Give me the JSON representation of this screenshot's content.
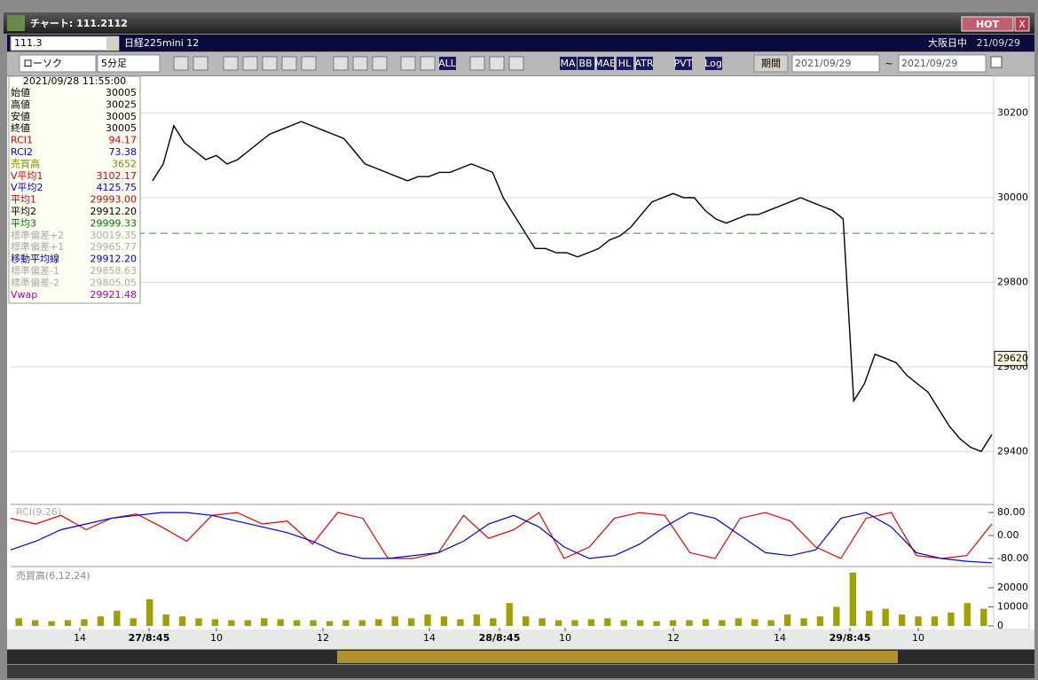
{
  "window": {
    "title": "チャート: 111.2112",
    "hot_button": "HOT",
    "close_button": "X"
  },
  "header": {
    "code": "111.3",
    "instrument": "日経225mini 12",
    "market": "大阪日中",
    "date": "21/09/29"
  },
  "toolbar": {
    "chart_type": "ローソク",
    "interval": "5分足",
    "icon_labels": [
      "ALL",
      "MA",
      "BB",
      "MAE",
      "HL",
      "ATR",
      "PVT",
      "Log"
    ],
    "period_button": "期間",
    "date_from": "2021/09/29",
    "range_sep": "~",
    "date_to": "2021/09/29"
  },
  "info_panel": {
    "datetime": "2021/09/28 11:55:00",
    "rows": [
      {
        "label": "始値",
        "value": "30005",
        "color": "#000000"
      },
      {
        "label": "高値",
        "value": "30025",
        "color": "#000000"
      },
      {
        "label": "安値",
        "value": "30005",
        "color": "#000000"
      },
      {
        "label": "終値",
        "value": "30005",
        "color": "#000000"
      },
      {
        "label": "RCI1",
        "value": "94.17",
        "color": "#cc0000"
      },
      {
        "label": "RCI2",
        "value": "73.38",
        "color": "#0000cc"
      },
      {
        "label": "売買高",
        "value": "3652",
        "color": "#888800"
      },
      {
        "label": "V平均1",
        "value": "3102.17",
        "color": "#cc0000"
      },
      {
        "label": "V平均2",
        "value": "4125.75",
        "color": "#0000cc"
      },
      {
        "label": "平均1",
        "value": "29993.00",
        "color": "#cc0000"
      },
      {
        "label": "平均2",
        "value": "29912.20",
        "color": "#000000"
      },
      {
        "label": "平均3",
        "value": "29999.33",
        "color": "#007700"
      },
      {
        "label": "標準偏差+2",
        "value": "30019.35",
        "color": "#aaaaaa"
      },
      {
        "label": "標準偏差+1",
        "value": "29965.77",
        "color": "#aaaaaa"
      },
      {
        "label": "移動平均線",
        "value": "29912.20",
        "color": "#0000aa"
      },
      {
        "label": "標準偏差-1",
        "value": "29858.63",
        "color": "#aaaaaa"
      },
      {
        "label": "標準偏差-2",
        "value": "29805.05",
        "color": "#aaaaaa"
      },
      {
        "label": "Vwap",
        "value": "29921.48",
        "color": "#aa00aa"
      }
    ]
  },
  "price_panel": {
    "closes": [
      30040,
      30080,
      30170,
      30130,
      30110,
      30090,
      30100,
      30080,
      30090,
      30110,
      30130,
      30150,
      30160,
      30170,
      30180,
      30170,
      30160,
      30150,
      30140,
      30110,
      30080,
      30070,
      30060,
      30050,
      30040,
      30050,
      30050,
      30060,
      30060,
      30070,
      30080,
      30070,
      30060,
      30000,
      29960,
      29920,
      29880,
      29880,
      29870,
      29870,
      29860,
      29870,
      29880,
      29900,
      29910,
      29930,
      29960,
      29990,
      30000,
      30010,
      30000,
      30000,
      29970,
      29950,
      29940,
      29950,
      29960,
      29960,
      29970,
      29980,
      29990,
      30000,
      29990,
      29980,
      29970,
      29950,
      29520,
      29560,
      29630,
      29620,
      29610,
      29580,
      29560,
      29540,
      29500,
      29460,
      29430,
      29410,
      29400,
      29440
    ],
    "color": "#000000",
    "ylim": [
      29277,
      30283
    ],
    "yticks": [
      30200,
      30000,
      29800,
      29600,
      29400
    ],
    "reference_line": 29916,
    "current_price": 29620
  },
  "rci_panel": {
    "label": "RCI(9,26)",
    "series": [
      {
        "name": "RCI1",
        "color": "#dd0000",
        "values": [
          60,
          40,
          70,
          20,
          60,
          75,
          30,
          -20,
          70,
          80,
          40,
          50,
          -30,
          80,
          60,
          -80,
          -80,
          -60,
          70,
          -10,
          20,
          80,
          -80,
          -40,
          60,
          80,
          70,
          -60,
          -80,
          60,
          80,
          50,
          -40,
          -80,
          60,
          80,
          -70,
          -80,
          -70,
          40
        ]
      },
      {
        "name": "RCI2",
        "color": "#0000cc",
        "values": [
          -50,
          -20,
          20,
          40,
          60,
          70,
          80,
          80,
          70,
          50,
          30,
          10,
          -20,
          -60,
          -80,
          -80,
          -70,
          -60,
          -20,
          40,
          70,
          30,
          -40,
          -80,
          -70,
          -30,
          30,
          80,
          60,
          0,
          -60,
          -70,
          -50,
          60,
          80,
          30,
          -60,
          -80,
          -90,
          -95
        ]
      }
    ],
    "ylim": [
      -105,
      105
    ],
    "yticks": [
      {
        "value": 80,
        "label": "80.00"
      },
      {
        "value": 0,
        "label": "0.00"
      },
      {
        "value": -80,
        "label": "-80.00"
      }
    ]
  },
  "volume_panel": {
    "label": "売買高(6,12,24)",
    "values": [
      4000,
      3000,
      2500,
      3000,
      3500,
      5000,
      8000,
      4000,
      14000,
      6000,
      5000,
      4000,
      3500,
      3000,
      3000,
      4000,
      3500,
      3000,
      3000,
      2500,
      3000,
      3000,
      3500,
      5000,
      4000,
      6000,
      5000,
      3500,
      6000,
      4000,
      12000,
      5000,
      4000,
      3000,
      3000,
      3500,
      4000,
      3000,
      3000,
      2500,
      3000,
      3000,
      3500,
      3000,
      4000,
      3500,
      3000,
      6000,
      4000,
      5000,
      10000,
      28000,
      8000,
      9000,
      6000,
      5000,
      5000,
      7000,
      12000,
      9000
    ],
    "color": "#a0a000",
    "ylim": [
      -930,
      30700
    ],
    "yticks": [
      20000,
      10000,
      0
    ]
  },
  "x_labels": [
    "14",
    "27/8:45",
    "10",
    "12",
    "14",
    "28/8:45",
    "10",
    "12",
    "14",
    "29/8:45",
    "10"
  ]
}
